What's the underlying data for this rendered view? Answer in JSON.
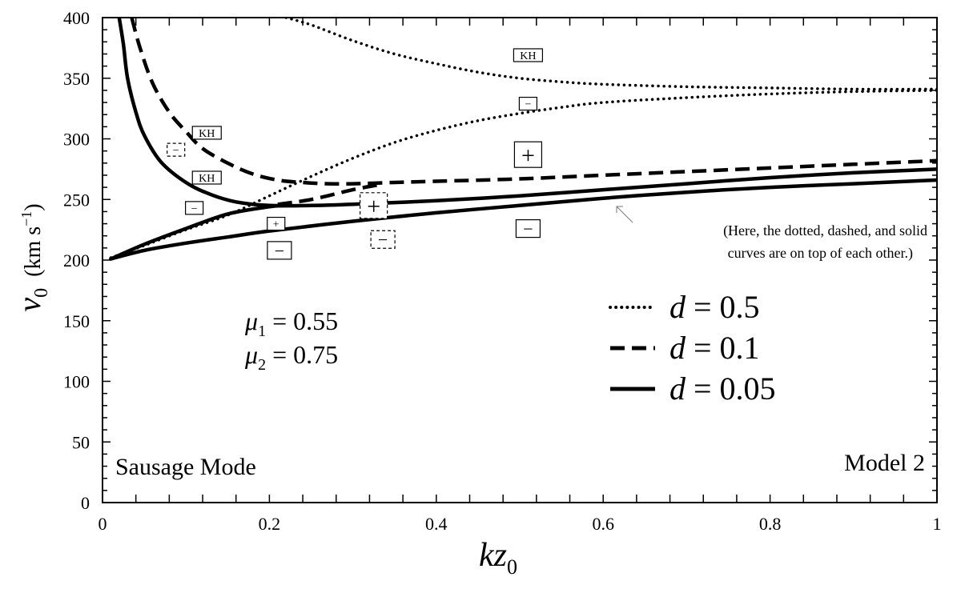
{
  "chart_data": {
    "type": "line",
    "xlabel_base": "kz",
    "xlabel_sub": "0",
    "ylabel_base": "v",
    "ylabel_sub": "0",
    "ylabel_unit_km": "(km s",
    "ylabel_unit_sup": "−1",
    "ylabel_unit_close": ")",
    "xlim": [
      0,
      1
    ],
    "ylim": [
      0,
      400
    ],
    "xticks": [
      {
        "v": 0,
        "label": "0"
      },
      {
        "v": 0.2,
        "label": "0.2"
      },
      {
        "v": 0.4,
        "label": "0.4"
      },
      {
        "v": 0.6,
        "label": "0.6"
      },
      {
        "v": 0.8,
        "label": "0.8"
      },
      {
        "v": 1,
        "label": "1"
      }
    ],
    "yticks": [
      {
        "v": 0,
        "label": "0"
      },
      {
        "v": 50,
        "label": "50"
      },
      {
        "v": 100,
        "label": "100"
      },
      {
        "v": 150,
        "label": "150"
      },
      {
        "v": 200,
        "label": "200"
      },
      {
        "v": 250,
        "label": "250"
      },
      {
        "v": 300,
        "label": "300"
      },
      {
        "v": 350,
        "label": "350"
      },
      {
        "v": 400,
        "label": "400"
      }
    ],
    "grid": false,
    "series": [
      {
        "name": "d = 0.5",
        "style": "dotted",
        "branch": "upper",
        "x": [
          0.22,
          0.25,
          0.3,
          0.35,
          0.4,
          0.45,
          0.5,
          0.55,
          0.6,
          0.7,
          0.8,
          0.9,
          1.0
        ],
        "y": [
          400,
          394,
          381,
          370,
          362,
          355,
          350,
          347,
          345,
          343,
          342,
          341,
          341
        ]
      },
      {
        "name": "d = 0.5",
        "style": "dotted",
        "branch": "lower",
        "x": [
          0.01,
          0.05,
          0.1,
          0.15,
          0.2,
          0.25,
          0.3,
          0.35,
          0.4,
          0.45,
          0.5,
          0.55,
          0.6,
          0.7,
          0.8,
          0.9,
          1.0
        ],
        "y": [
          202,
          212,
          225,
          237,
          253,
          269,
          284,
          297,
          307,
          315,
          321,
          326,
          330,
          334,
          337,
          339,
          340
        ]
      },
      {
        "name": "d = 0.1",
        "style": "dashed",
        "branch": "upper",
        "x": [
          0.035,
          0.045,
          0.06,
          0.08,
          0.1,
          0.12,
          0.15,
          0.18,
          0.21,
          0.24,
          0.27,
          0.3,
          0.35,
          0.4,
          0.5,
          0.6,
          0.7,
          0.8,
          0.9,
          1.0
        ],
        "y": [
          400,
          375,
          346,
          322,
          306,
          292,
          280,
          271,
          266,
          264,
          263,
          263,
          264,
          265,
          267,
          270,
          273,
          276,
          279,
          282
        ]
      },
      {
        "name": "d = 0.1",
        "style": "dashed",
        "branch": "lower",
        "x": [
          0.21,
          0.25,
          0.3,
          0.33
        ],
        "y": [
          246,
          250,
          258,
          262
        ]
      },
      {
        "name": "d = 0.05",
        "style": "solid",
        "branch": "upper",
        "x": [
          0.02,
          0.025,
          0.03,
          0.04,
          0.05,
          0.07,
          0.1,
          0.13,
          0.16,
          0.2,
          0.25,
          0.3,
          0.4,
          0.5,
          0.6,
          0.7,
          0.8,
          0.9,
          1.0
        ],
        "y": [
          400,
          378,
          350,
          322,
          303,
          281,
          264,
          254,
          248,
          245,
          245,
          246,
          249,
          253,
          258,
          263,
          268,
          272,
          275
        ]
      },
      {
        "name": "d = 0.05",
        "style": "solid",
        "branch": "lower",
        "x": [
          0.01,
          0.05,
          0.1,
          0.15,
          0.2,
          0.3,
          0.4,
          0.5,
          0.6,
          0.7,
          0.8,
          0.9,
          1.0
        ],
        "y": [
          201,
          208,
          214,
          219,
          224,
          232,
          239,
          245,
          251,
          256,
          260,
          263,
          266
        ]
      },
      {
        "name": "d = 0.05",
        "style": "solid",
        "branch": "connector",
        "x": [
          0.01,
          0.05,
          0.1,
          0.15,
          0.2,
          0.22
        ],
        "y": [
          201,
          213,
          226,
          238,
          244,
          245
        ]
      }
    ],
    "box_labels": [
      {
        "text": "KH",
        "x": 0.51,
        "y": 369,
        "border": "solid",
        "size": "s"
      },
      {
        "text": "−",
        "x": 0.51,
        "y": 329,
        "border": "solid",
        "size": "s"
      },
      {
        "text": "+",
        "x": 0.51,
        "y": 287,
        "border": "solid",
        "size": "l"
      },
      {
        "text": "−",
        "x": 0.51,
        "y": 226,
        "border": "solid",
        "size": "m"
      },
      {
        "text": "KH",
        "x": 0.125,
        "y": 305,
        "border": "solid",
        "size": "s"
      },
      {
        "text": "−",
        "x": 0.088,
        "y": 291,
        "border": "dashed",
        "size": "s"
      },
      {
        "text": "KH",
        "x": 0.125,
        "y": 268,
        "border": "solid",
        "size": "s"
      },
      {
        "text": "−",
        "x": 0.11,
        "y": 243,
        "border": "solid",
        "size": "s"
      },
      {
        "text": "+",
        "x": 0.208,
        "y": 230,
        "border": "solid",
        "size": "s"
      },
      {
        "text": "−",
        "x": 0.212,
        "y": 208,
        "border": "solid",
        "size": "m"
      },
      {
        "text": "+",
        "x": 0.325,
        "y": 245,
        "border": "dashed",
        "size": "l"
      },
      {
        "text": "−",
        "x": 0.336,
        "y": 217,
        "border": "dashed",
        "size": "m"
      }
    ],
    "note_line1": "(Here, the dotted, dashed, and solid",
    "note_line2": "curves are on top of each other.)",
    "mode_label": "Sausage Mode",
    "model_label": "Model 2",
    "legend": [
      {
        "style": "dotted",
        "prefix": "d",
        "eq": " = 0.5"
      },
      {
        "style": "dashed",
        "prefix": "d",
        "eq": " = 0.1"
      },
      {
        "style": "solid",
        "prefix": "d",
        "eq": " = 0.05"
      }
    ],
    "params": [
      {
        "sym": "μ",
        "sub": "1",
        "eq": " = 0.55"
      },
      {
        "sym": "μ",
        "sub": "2",
        "eq": " = 0.75"
      }
    ]
  }
}
